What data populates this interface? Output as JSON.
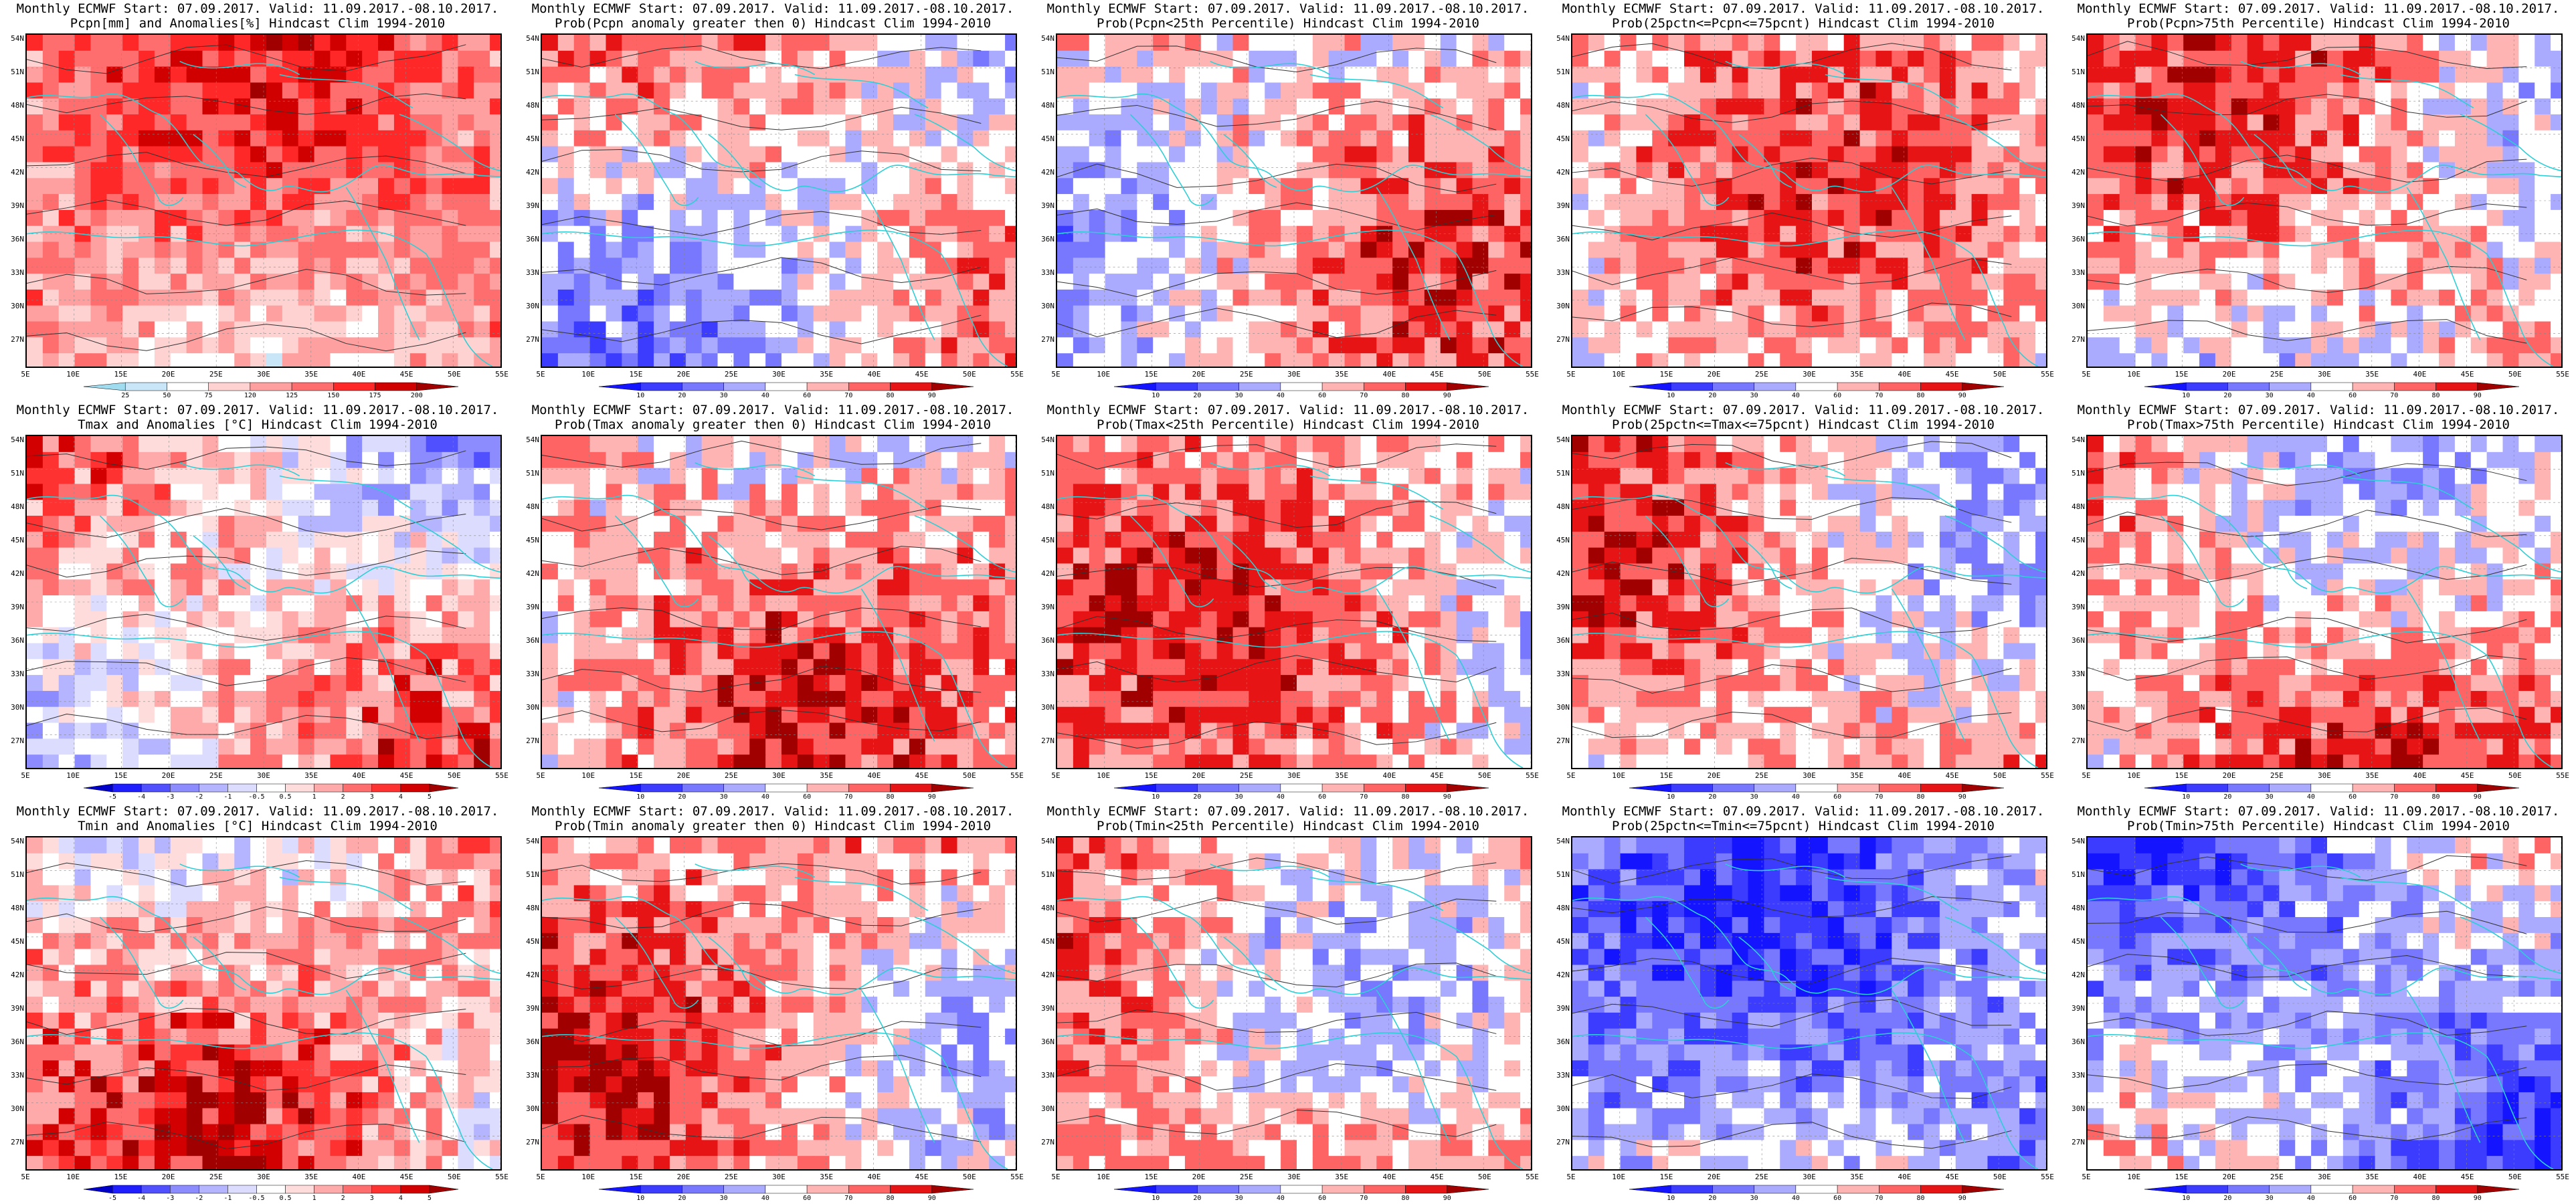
{
  "panels": [
    {
      "title1": "Monthly ECMWF Start: 07.09.2017. Valid: 11.09.2017.-08.10.2017.",
      "title2": "Pcpn[mm] and Anomalies[%] Hindcast Clim 1994-2010",
      "variable": "precipitation",
      "scheme": "anom",
      "legend": [
        "25",
        "50",
        "75",
        "120",
        "125",
        "150",
        "175",
        "200"
      ]
    },
    {
      "title1": "Monthly ECMWF Start: 07.09.2017. Valid: 11.09.2017.-08.10.2017.",
      "title2": "Prob(Pcpn anomaly greater then 0) Hindcast Clim 1994-2010",
      "variable": "precipitation",
      "scheme": "prob",
      "legend": [
        "10",
        "20",
        "30",
        "40",
        "60",
        "70",
        "80",
        "90"
      ]
    },
    {
      "title1": "Monthly ECMWF Start: 07.09.2017. Valid: 11.09.2017.-08.10.2017.",
      "title2": "Prob(Pcpn<25th Percentile) Hindcast Clim 1994-2010",
      "variable": "precipitation",
      "scheme": "prob",
      "legend": [
        "10",
        "20",
        "30",
        "40",
        "60",
        "70",
        "80",
        "90"
      ]
    },
    {
      "title1": "Monthly ECMWF Start: 07.09.2017. Valid: 11.09.2017.-08.10.2017.",
      "title2": "Prob(25pctn<=Pcpn<=75pcnt) Hindcast Clim 1994-2010",
      "variable": "precipitation",
      "scheme": "prob",
      "legend": [
        "10",
        "20",
        "30",
        "40",
        "60",
        "70",
        "80",
        "90"
      ]
    },
    {
      "title1": "Monthly ECMWF Start: 07.09.2017. Valid: 11.09.2017.-08.10.2017.",
      "title2": "Prob(Pcpn>75th Percentile) Hindcast Clim 1994-2010",
      "variable": "precipitation",
      "scheme": "prob",
      "legend": [
        "10",
        "20",
        "30",
        "40",
        "60",
        "70",
        "80",
        "90"
      ]
    },
    {
      "title1": "Monthly ECMWF Start: 07.09.2017. Valid: 11.09.2017.-08.10.2017.",
      "title2": "Tmax and Anomalies [°C] Hindcast Clim 1994-2010",
      "variable": "tmax",
      "scheme": "tanom",
      "legend": [
        "-5",
        "-4",
        "-3",
        "-2",
        "-1",
        "-0.5",
        "0.5",
        "1",
        "2",
        "3",
        "4",
        "5"
      ]
    },
    {
      "title1": "Monthly ECMWF Start: 07.09.2017. Valid: 11.09.2017.-08.10.2017.",
      "title2": "Prob(Tmax anomaly greater then 0) Hindcast Clim 1994-2010",
      "variable": "tmax",
      "scheme": "prob",
      "legend": [
        "10",
        "20",
        "30",
        "40",
        "60",
        "70",
        "80",
        "90"
      ]
    },
    {
      "title1": "Monthly ECMWF Start: 07.09.2017. Valid: 11.09.2017.-08.10.2017.",
      "title2": "Prob(Tmax<25th Percentile) Hindcast Clim 1994-2010",
      "variable": "tmax",
      "scheme": "prob",
      "legend": [
        "10",
        "20",
        "30",
        "40",
        "60",
        "70",
        "80",
        "90"
      ]
    },
    {
      "title1": "Monthly ECMWF Start: 07.09.2017. Valid: 11.09.2017.-08.10.2017.",
      "title2": "Prob(25pctn<=Tmax<=75pcnt) Hindcast Clim 1994-2010",
      "variable": "tmax",
      "scheme": "prob",
      "legend": [
        "10",
        "20",
        "30",
        "40",
        "60",
        "70",
        "80",
        "90"
      ]
    },
    {
      "title1": "Monthly ECMWF Start: 07.09.2017. Valid: 11.09.2017.-08.10.2017.",
      "title2": "Prob(Tmax>75th Percentile) Hindcast Clim 1994-2010",
      "variable": "tmax",
      "scheme": "prob",
      "legend": [
        "10",
        "20",
        "30",
        "40",
        "60",
        "70",
        "80",
        "90"
      ]
    },
    {
      "title1": "Monthly ECMWF Start: 07.09.2017. Valid: 11.09.2017.-08.10.2017.",
      "title2": "Tmin and Anomalies [°C] Hindcast Clim 1994-2010",
      "variable": "tmin",
      "scheme": "tanom",
      "legend": [
        "-5",
        "-4",
        "-3",
        "-2",
        "-1",
        "-0.5",
        "0.5",
        "1",
        "2",
        "3",
        "4",
        "5"
      ]
    },
    {
      "title1": "Monthly ECMWF Start: 07.09.2017. Valid: 11.09.2017.-08.10.2017.",
      "title2": "Prob(Tmin anomaly greater then 0) Hindcast Clim 1994-2010",
      "variable": "tmin",
      "scheme": "prob",
      "legend": [
        "10",
        "20",
        "30",
        "40",
        "60",
        "70",
        "80",
        "90"
      ]
    },
    {
      "title1": "Monthly ECMWF Start: 07.09.2017. Valid: 11.09.2017.-08.10.2017.",
      "title2": "Prob(Tmin<25th Percentile) Hindcast Clim 1994-2010",
      "variable": "tmin",
      "scheme": "prob",
      "legend": [
        "10",
        "20",
        "30",
        "40",
        "60",
        "70",
        "80",
        "90"
      ]
    },
    {
      "title1": "Monthly ECMWF Start: 07.09.2017. Valid: 11.09.2017.-08.10.2017.",
      "title2": "Prob(25pctn<=Tmin<=75pcnt) Hindcast Clim 1994-2010",
      "variable": "tmin",
      "scheme": "prob",
      "legend": [
        "10",
        "20",
        "30",
        "40",
        "60",
        "70",
        "80",
        "90"
      ]
    },
    {
      "title1": "Monthly ECMWF Start: 07.09.2017. Valid: 11.09.2017.-08.10.2017.",
      "title2": "Prob(Tmin>75th Percentile) Hindcast Clim 1994-2010",
      "variable": "tmin",
      "scheme": "prob",
      "legend": [
        "10",
        "20",
        "30",
        "40",
        "60",
        "70",
        "80",
        "90"
      ]
    }
  ],
  "axes": {
    "lat_labels": [
      "54N",
      "51N",
      "48N",
      "45N",
      "42N",
      "39N",
      "36N",
      "33N",
      "30N",
      "27N"
    ],
    "lon_labels": [
      "5E",
      "10E",
      "15E",
      "20E",
      "25E",
      "30E",
      "35E",
      "40E",
      "45E",
      "50E",
      "55E"
    ]
  },
  "colors": {
    "prob_scale": [
      "#1414ff",
      "#3c3cff",
      "#7878ff",
      "#aaaaff",
      "#ffffff",
      "#ffb4b4",
      "#ff6464",
      "#e61414",
      "#a00000"
    ],
    "anom_scale": [
      "#a0dcf0",
      "#c8e6f8",
      "#ffffff",
      "#ffd2d2",
      "#ffa0a0",
      "#ff6e6e",
      "#ff2828",
      "#d00000",
      "#a00000"
    ],
    "tanom_scale": [
      "#0000c8",
      "#1e1eff",
      "#5050ff",
      "#8c8cff",
      "#b4b4ff",
      "#dcdcff",
      "#ffffff",
      "#ffdcdc",
      "#ffaaaa",
      "#ff6e6e",
      "#ff3232",
      "#d20000",
      "#a00000"
    ],
    "coast": "#2ccfd6",
    "contour": "#333333"
  }
}
